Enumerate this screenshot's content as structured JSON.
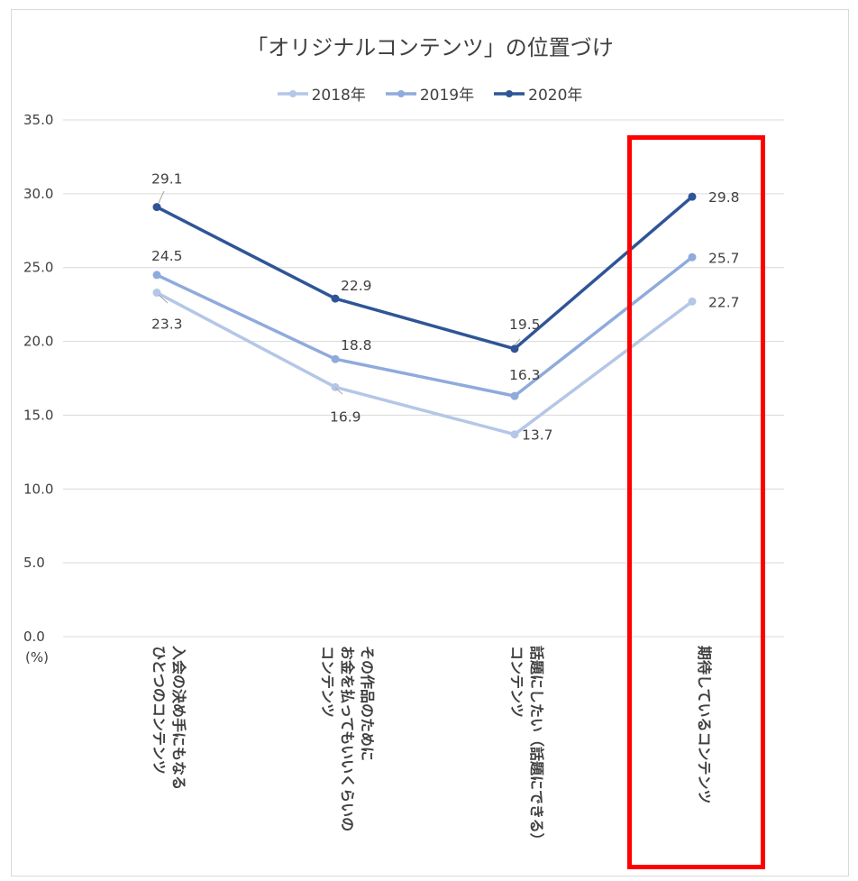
{
  "chart_data": {
    "type": "line",
    "title": "「オリジナルコンテンツ」の位置づけ",
    "ylabel": "(%)",
    "ylim": [
      0,
      35
    ],
    "yticks": [
      "0.0",
      "5.0",
      "10.0",
      "15.0",
      "20.0",
      "25.0",
      "30.0",
      "35.0"
    ],
    "categories": [
      [
        "入会の決め手にもなる",
        "ひとつのコンテンツ"
      ],
      [
        "その作品のために",
        "お金を払ってもいいくらいの",
        "コンテンツ"
      ],
      [
        "話題にしたい（話題にできる）",
        "コンテンツ"
      ],
      [
        "期待しているコンテンツ"
      ]
    ],
    "series": [
      {
        "name": "2018年",
        "color": "#b4c7e7",
        "values": [
          23.3,
          16.9,
          13.7,
          22.7
        ]
      },
      {
        "name": "2019年",
        "color": "#8faadc",
        "values": [
          24.5,
          18.8,
          16.3,
          25.7
        ]
      },
      {
        "name": "2020年",
        "color": "#2f5597",
        "values": [
          29.1,
          22.9,
          19.5,
          29.8
        ]
      }
    ],
    "data_labels": [
      [
        "23.3",
        "16.9",
        "13.7",
        "22.7"
      ],
      [
        "24.5",
        "18.8",
        "16.3",
        "25.7"
      ],
      [
        "29.1",
        "22.9",
        "19.5",
        "29.8"
      ]
    ],
    "grid": true,
    "legend_position": "top"
  },
  "highlight_color": "#ff0000"
}
